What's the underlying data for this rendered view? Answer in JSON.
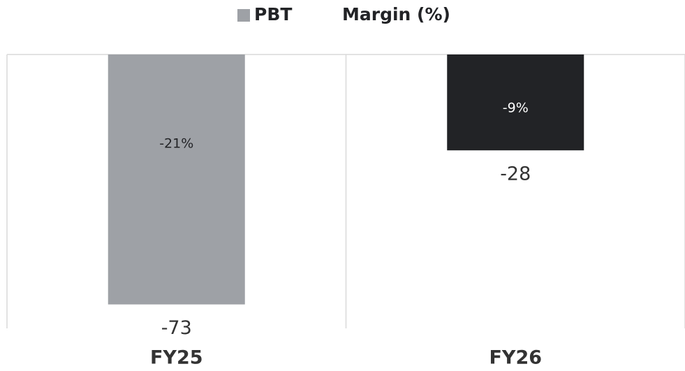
{
  "chart_data": {
    "type": "bar",
    "categories": [
      "FY25",
      "FY26"
    ],
    "series": [
      {
        "name": "PBT",
        "color": "#9ea1a6",
        "colors": [
          "#9ea1a6",
          "#222326"
        ],
        "values": [
          -73,
          -28
        ]
      },
      {
        "name": "Margin (%)",
        "color": "#ffffff",
        "values": [
          -21,
          -9
        ],
        "value_labels": [
          "-21%",
          "-9%"
        ]
      }
    ],
    "ylim": [
      -80,
      0
    ]
  }
}
